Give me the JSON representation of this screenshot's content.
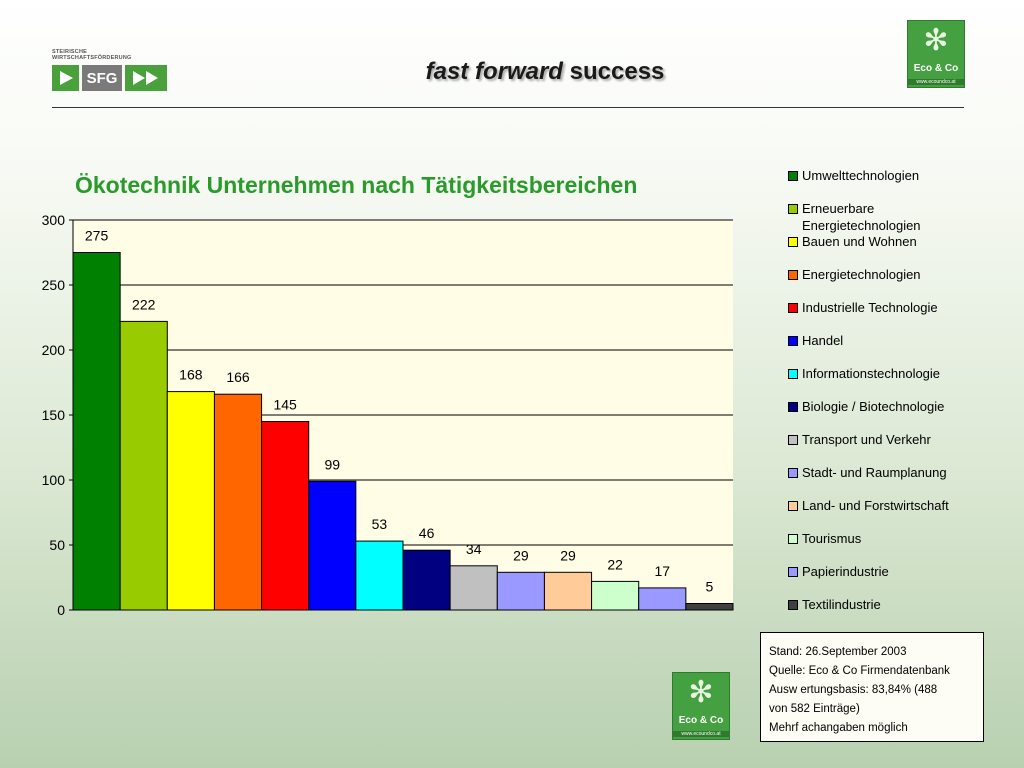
{
  "header": {
    "sfg_tagline": "STEIRISCHE WIRTSCHAFTSFÖRDERUNG",
    "sfg_text": "SFG",
    "title_italic": "fast forward",
    "title_rest": " success",
    "eco_name": "Eco & Co",
    "eco_url": "www.ecoundco.at"
  },
  "chart_data": {
    "type": "bar",
    "title": "Ökotechnik Unternehmen nach Tätigkeitsbereichen",
    "ylim": [
      0,
      300
    ],
    "yticks": [
      0,
      50,
      100,
      150,
      200,
      250,
      300
    ],
    "grid": true,
    "legend_position": "right",
    "plot_background": "#fffde6",
    "categories": [
      "Umwelttechnologien",
      "Erneuerbare Energietechnologien",
      "Bauen und Wohnen",
      "Energietechnologien",
      "Industrielle Technologie",
      "Handel",
      "Informationstechnologie",
      "Biologie / Biotechnologie",
      "Transport und Verkehr",
      "Stadt- und Raumplanung",
      "Land- und Forstwirtschaft",
      "Tourismus",
      "Papierindustrie",
      "Textilindustrie"
    ],
    "values": [
      275,
      222,
      168,
      166,
      145,
      99,
      53,
      46,
      34,
      29,
      29,
      22,
      17,
      5
    ],
    "colors": [
      "#008000",
      "#99cc00",
      "#ffff00",
      "#ff6600",
      "#ff0000",
      "#0000ff",
      "#00ffff",
      "#000080",
      "#c0c0c0",
      "#9999ff",
      "#ffcc99",
      "#ccffcc",
      "#9999ff",
      "#404040"
    ]
  },
  "legend": {
    "items": [
      {
        "line1": "Umwelttechnologien",
        "line2": ""
      },
      {
        "line1": "Erneuerbare",
        "line2": "Energietechnologien"
      },
      {
        "line1": "Bauen und Wohnen",
        "line2": ""
      },
      {
        "line1": "Energietechnologien",
        "line2": ""
      },
      {
        "line1": "Industrielle Technologie",
        "line2": ""
      },
      {
        "line1": "Handel",
        "line2": ""
      },
      {
        "line1": "Informationstechnologie",
        "line2": ""
      },
      {
        "line1": "Biologie / Biotechnologie",
        "line2": ""
      },
      {
        "line1": "Transport und Verkehr",
        "line2": ""
      },
      {
        "line1": "Stadt- und Raumplanung",
        "line2": ""
      },
      {
        "line1": "Land- und Forstwirtschaft",
        "line2": ""
      },
      {
        "line1": "Tourismus",
        "line2": ""
      },
      {
        "line1": "Papierindustrie",
        "line2": ""
      },
      {
        "line1": "Textilindustrie",
        "line2": ""
      }
    ]
  },
  "note": {
    "line1": "Stand: 26.September 2003",
    "line2": "Quelle: Eco & Co Firmendatenbank",
    "line3": "Ausw ertungsbasis: 83,84% (488",
    "line4": "von 582 Einträge)",
    "line5": "Mehrf achangaben möglich"
  }
}
